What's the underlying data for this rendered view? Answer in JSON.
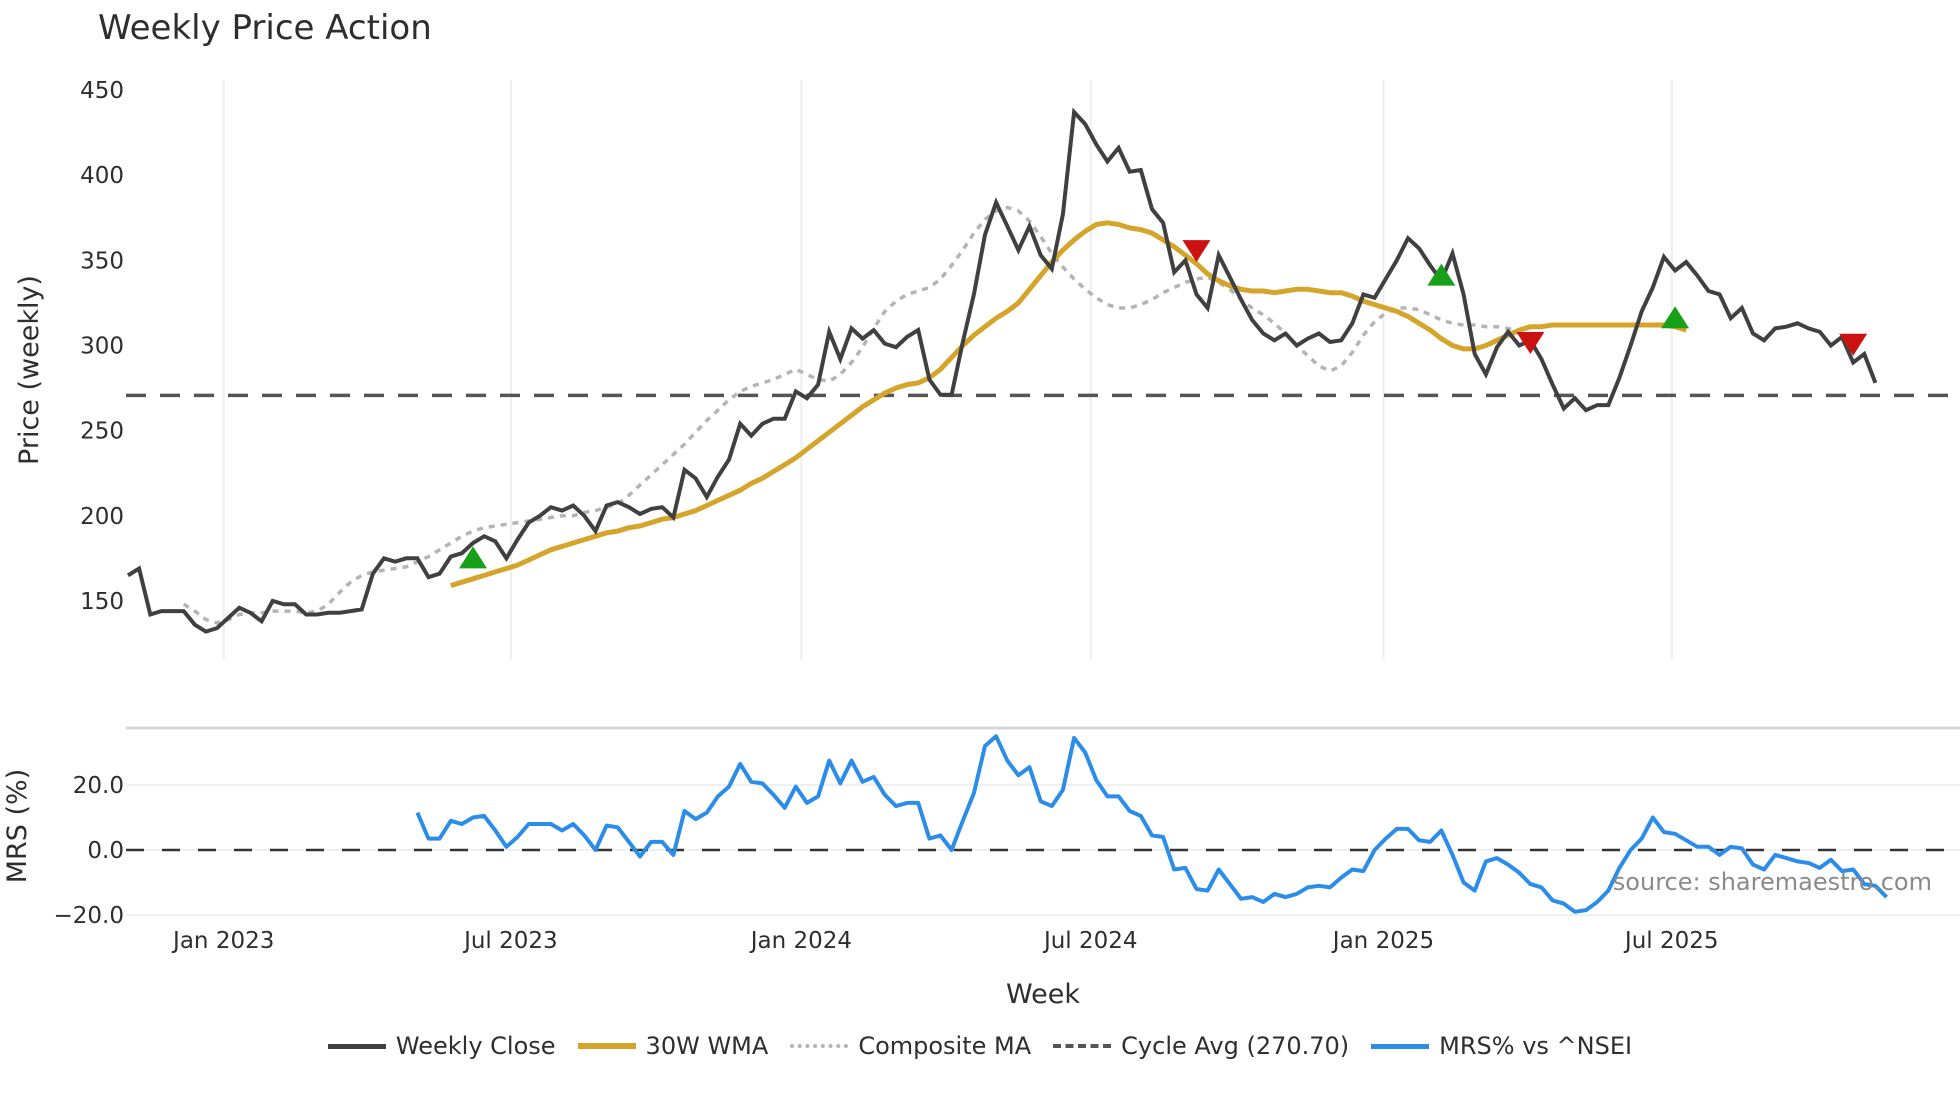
{
  "title": "Weekly Price Action",
  "chart_data": {
    "type": "line",
    "title": "Weekly Price Action",
    "xlabel": "Week",
    "panels": [
      {
        "name": "price",
        "ylabel": "Price (weekly)",
        "yticks": [
          150,
          200,
          250,
          300,
          350,
          400,
          450
        ],
        "ylim": [
          115,
          452
        ]
      },
      {
        "name": "mrs",
        "ylabel": "MRS (%)",
        "yticks": [
          "−20.0",
          "0.0",
          "20.0"
        ],
        "ylim": [
          -22,
          40
        ]
      }
    ],
    "x_ticks": [
      "Jan 2023",
      "Jul 2023",
      "Jan 2024",
      "Jul 2024",
      "Jan 2025",
      "Jul 2025"
    ],
    "x_tick_weeks": [
      8.6,
      34.4,
      60.5,
      86.5,
      112.8,
      138.7
    ],
    "weekly_close": [
      165,
      169,
      142,
      144,
      144,
      144,
      136,
      132,
      134,
      140,
      146,
      143,
      138,
      150,
      148,
      148,
      142,
      142,
      143,
      143,
      144,
      145,
      166,
      175,
      173,
      175,
      175,
      164,
      166,
      176,
      178,
      184,
      188,
      185,
      175,
      186,
      196,
      200,
      205,
      203,
      206,
      200,
      191,
      206,
      208,
      205,
      201,
      204,
      205,
      199,
      227,
      222,
      211,
      223,
      233,
      254,
      247,
      254,
      257,
      257,
      273,
      269,
      277,
      308,
      292,
      310,
      304,
      309,
      301,
      299,
      305,
      309,
      280,
      271,
      271,
      302,
      330,
      365,
      384,
      370,
      356,
      370,
      353,
      345,
      377,
      437,
      430,
      418,
      408,
      416,
      402,
      403,
      380,
      372,
      343,
      350,
      330,
      322,
      353,
      340,
      327,
      315,
      307,
      303,
      307,
      300,
      304,
      307,
      302,
      303,
      313,
      330,
      328,
      339,
      350,
      363,
      357,
      347,
      338,
      354,
      330,
      295,
      283,
      299,
      308,
      300,
      303,
      292,
      277,
      263,
      269,
      262,
      265,
      265,
      281,
      300,
      320,
      334,
      352,
      344,
      349,
      341,
      332,
      330,
      316,
      322,
      307,
      303,
      310,
      311,
      313,
      310,
      308,
      300,
      305,
      290,
      295,
      278
    ],
    "wma_30": [
      null,
      null,
      null,
      null,
      null,
      null,
      null,
      null,
      null,
      null,
      null,
      null,
      null,
      null,
      null,
      null,
      null,
      null,
      null,
      null,
      null,
      null,
      null,
      null,
      null,
      null,
      null,
      null,
      null,
      159,
      161,
      163,
      165,
      167,
      169,
      171,
      174,
      177,
      180,
      182,
      184,
      186,
      188,
      190,
      191,
      193,
      194,
      196,
      198,
      199,
      201,
      203,
      206,
      209,
      212,
      215,
      219,
      222,
      226,
      230,
      234,
      239,
      244,
      249,
      254,
      259,
      264,
      268,
      272,
      275,
      277,
      278,
      281,
      286,
      293,
      300,
      306,
      311,
      316,
      320,
      325,
      333,
      341,
      349,
      356,
      362,
      367,
      371,
      372,
      371,
      369,
      368,
      366,
      362,
      358,
      353,
      348,
      342,
      338,
      335,
      333,
      332,
      332,
      331,
      332,
      333,
      333,
      332,
      331,
      331,
      329,
      326,
      324,
      322,
      320,
      317,
      313,
      309,
      304,
      300,
      298,
      298,
      300,
      303,
      306,
      309,
      311,
      311,
      312,
      312,
      312,
      312,
      312,
      312,
      312,
      312,
      312,
      312,
      312,
      311,
      309
    ],
    "composite_ma": [
      null,
      null,
      null,
      null,
      null,
      148,
      144,
      139,
      137,
      139,
      142,
      143,
      143,
      144,
      144,
      144,
      143,
      144,
      148,
      155,
      161,
      165,
      167,
      168,
      169,
      170,
      173,
      176,
      180,
      184,
      188,
      191,
      193,
      194,
      195,
      196,
      197,
      198,
      199,
      200,
      200,
      202,
      203,
      205,
      207,
      212,
      218,
      224,
      230,
      236,
      242,
      249,
      256,
      262,
      268,
      273,
      276,
      278,
      280,
      283,
      286,
      283,
      280,
      279,
      283,
      290,
      299,
      310,
      320,
      326,
      330,
      332,
      334,
      339,
      347,
      356,
      366,
      374,
      379,
      381,
      379,
      373,
      364,
      354,
      346,
      339,
      333,
      328,
      324,
      322,
      322,
      324,
      327,
      331,
      334,
      337,
      339,
      340,
      337,
      333,
      327,
      322,
      318,
      313,
      307,
      300,
      294,
      288,
      285,
      288,
      296,
      306,
      314,
      319,
      322,
      322,
      321,
      318,
      315,
      313,
      312,
      312,
      311,
      311,
      310,
      308,
      305
    ],
    "cycle_avg": 270.7,
    "mrs_pct": [
      11.5,
      3.5,
      3.5,
      9,
      8,
      10,
      10.5,
      6,
      1,
      4,
      8,
      8,
      8,
      6,
      8,
      4.5,
      0,
      7.5,
      7,
      2.5,
      -2,
      2.5,
      2.5,
      -1.5,
      12,
      9.5,
      11.5,
      16.5,
      19.5,
      26.5,
      21,
      20.5,
      17,
      13,
      19.5,
      14.5,
      16.5,
      27.5,
      20.5,
      27.5,
      21,
      22.5,
      17,
      13.5,
      14.5,
      14.5,
      3.5,
      4.5,
      0,
      9,
      17.5,
      32,
      35,
      27.5,
      23,
      25.5,
      15,
      13.5,
      18.5,
      34.5,
      30,
      21.5,
      16.5,
      16.5,
      12,
      10.5,
      4.5,
      4,
      -6,
      -5.5,
      -12,
      -12.5,
      -6,
      -10.5,
      -15,
      -14.5,
      -16,
      -13.5,
      -14.5,
      -13.5,
      -11.5,
      -11,
      -11.5,
      -8.5,
      -6,
      -6.5,
      0,
      3.5,
      6.5,
      6.5,
      3,
      2.5,
      6,
      -1.5,
      -10,
      -12.5,
      -3.5,
      -2.5,
      -4.5,
      -7,
      -10.5,
      -11.5,
      -15.5,
      -16.5,
      -19,
      -18.5,
      -16,
      -12.5,
      -5.5,
      0,
      3.5,
      10,
      5.5,
      5,
      3,
      1,
      1,
      -1.5,
      1,
      0.5,
      -4.5,
      -6,
      -1.5,
      -2.5,
      -3.5,
      -4,
      -5.5,
      -3,
      -6.5,
      -6,
      -10.5,
      -11,
      -14.5
    ],
    "mrs_start_week": 26,
    "signals": [
      {
        "type": "buy",
        "week": 31,
        "value": 175
      },
      {
        "type": "sell",
        "week": 96,
        "value": 356
      },
      {
        "type": "buy",
        "week": 118,
        "value": 341
      },
      {
        "type": "sell",
        "week": 126,
        "value": 302
      },
      {
        "type": "buy",
        "week": 139,
        "value": 316
      },
      {
        "type": "sell",
        "week": 155,
        "value": 301
      }
    ],
    "colors": {
      "weekly_close": "#404040",
      "wma": "#d4a52a",
      "composite": "#b4b4b4",
      "cycle": "#555555",
      "mrs": "#2b8de8",
      "buy": "#18a018",
      "sell": "#cc1111"
    }
  },
  "axes": {
    "price_ylabel": "Price (weekly)",
    "mrs_ylabel": "MRS (%)",
    "xlabel": "Week"
  },
  "source": "source: sharemaestro.com",
  "legend": [
    {
      "label": "Weekly Close",
      "style": "solid",
      "color": "#404040"
    },
    {
      "label": "30W WMA",
      "style": "solid",
      "color": "#d4a52a"
    },
    {
      "label": "Composite MA",
      "style": "dotted",
      "color": "#b4b4b4"
    },
    {
      "label": "Cycle Avg (270.70)",
      "style": "dashed",
      "color": "#555555"
    },
    {
      "label": "MRS% vs ^NSEI",
      "style": "solid",
      "color": "#2b8de8"
    }
  ]
}
